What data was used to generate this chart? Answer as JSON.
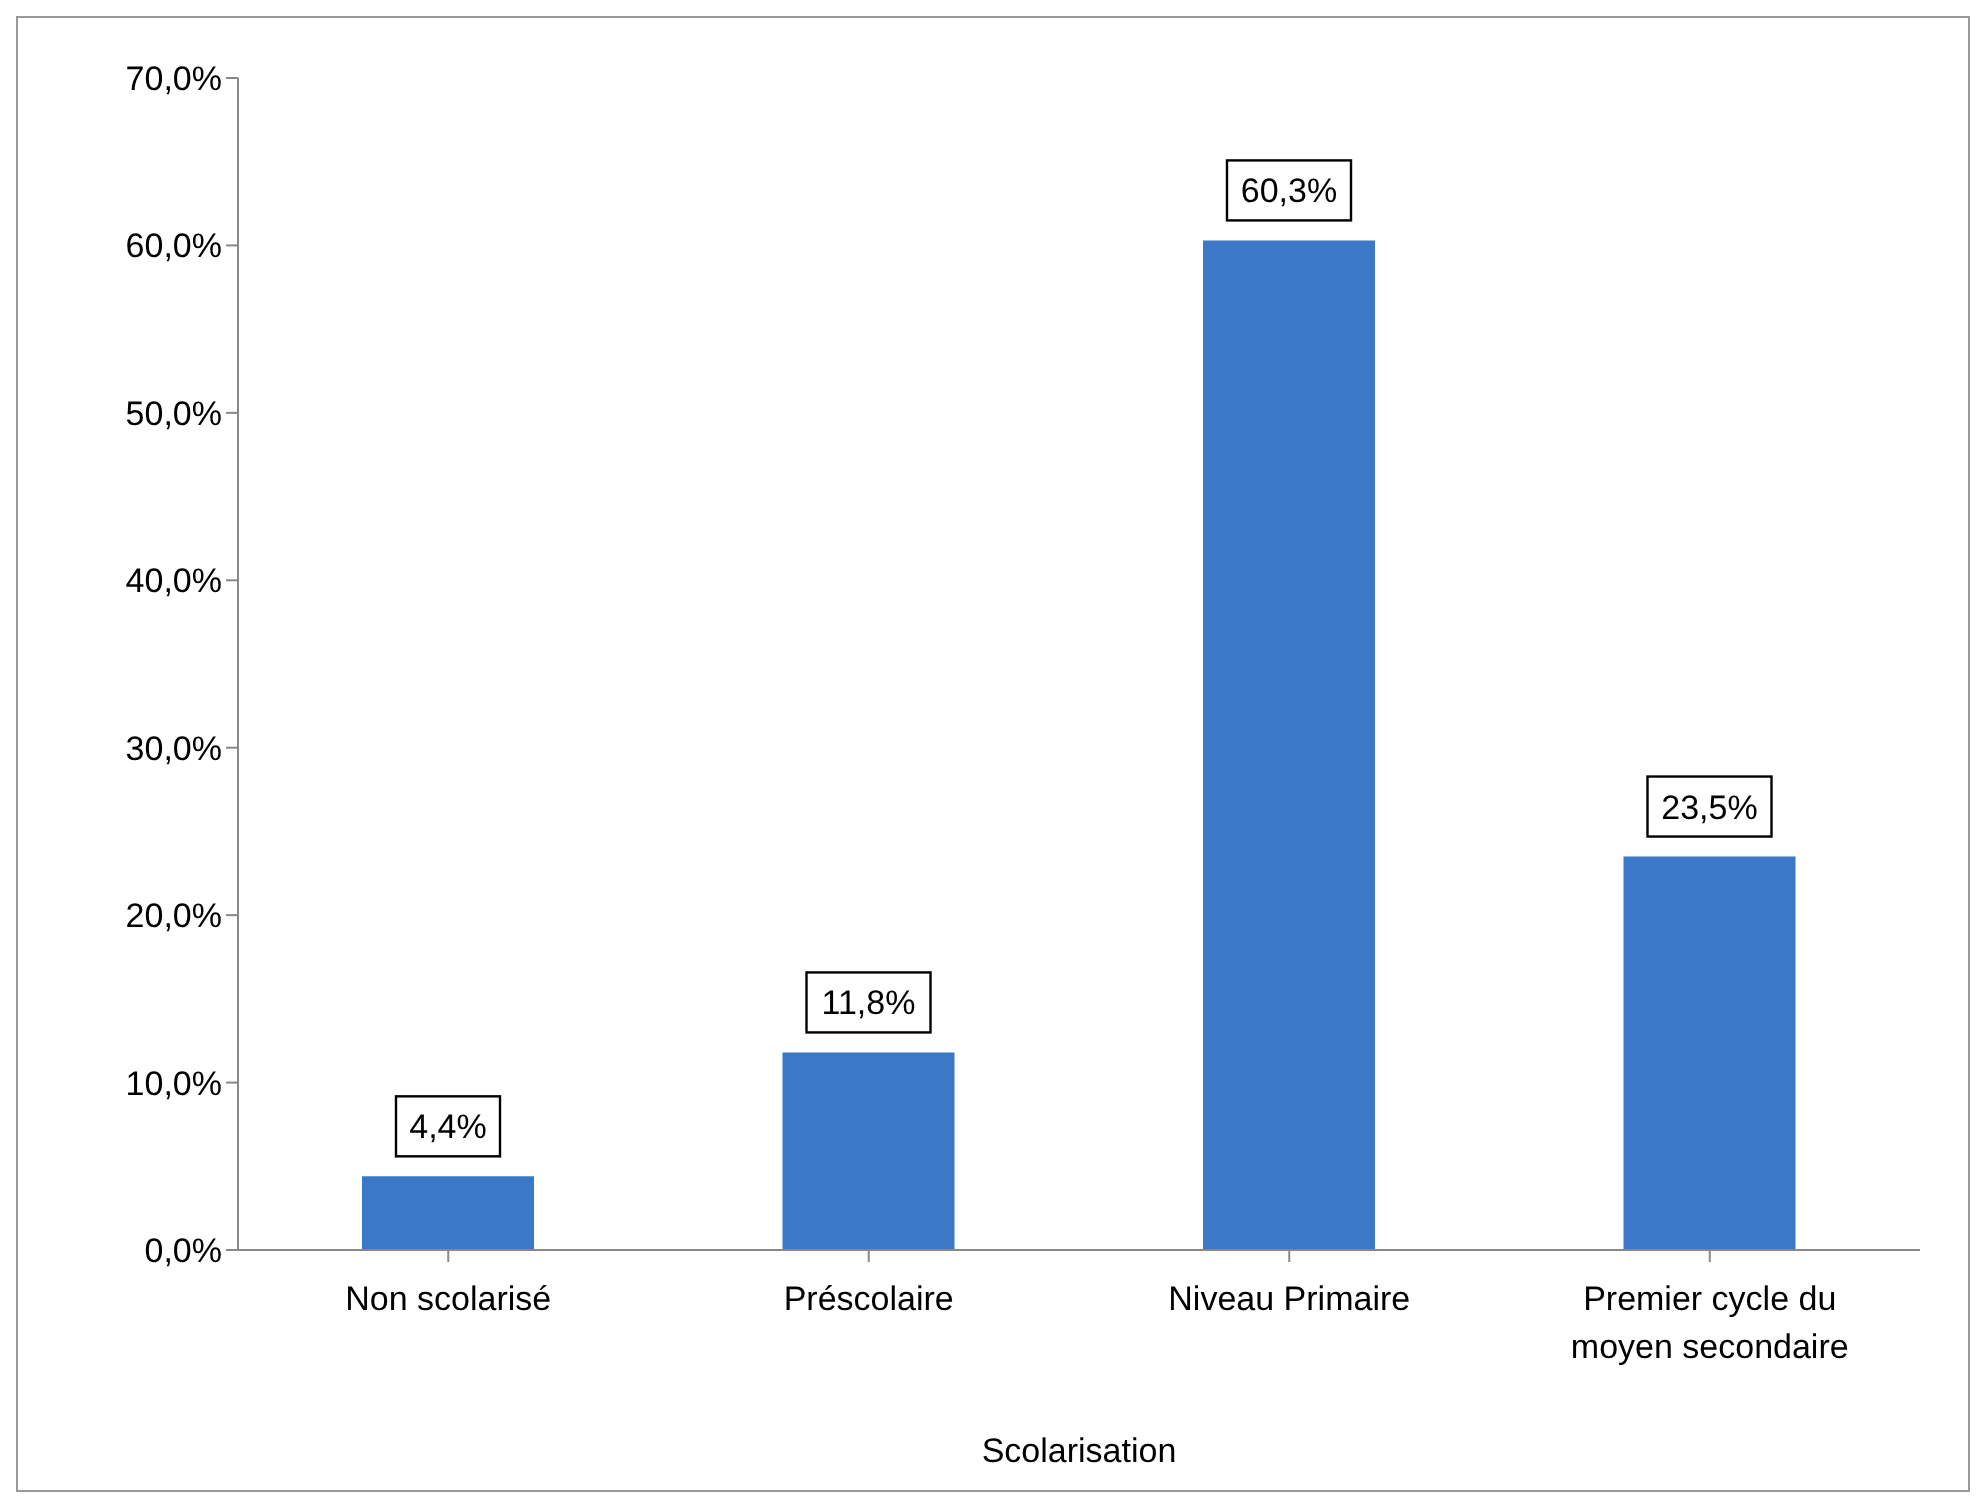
{
  "chart_data": {
    "type": "bar",
    "xlabel": "Scolarisation",
    "categories": [
      "Non scolarisé",
      "Préscolaire",
      "Niveau Primaire",
      "Premier cycle du moyen secondaire"
    ],
    "values": [
      4.4,
      11.8,
      60.3,
      23.5
    ],
    "value_labels": [
      "4,4%",
      "11,8%",
      "60,3%",
      "23,5%"
    ],
    "color": "#3b78c8",
    "ylim": [
      0,
      70
    ],
    "yticks": [
      {
        "value": 0,
        "label": "0,0%"
      },
      {
        "value": 10,
        "label": "10,0%"
      },
      {
        "value": 20,
        "label": "20,0%"
      },
      {
        "value": 30,
        "label": "30,0%"
      },
      {
        "value": 40,
        "label": "40,0%"
      },
      {
        "value": 50,
        "label": "50,0%"
      },
      {
        "value": 60,
        "label": "60,0%"
      },
      {
        "value": 70,
        "label": "70,0%"
      }
    ],
    "grid": false,
    "legend": false
  }
}
